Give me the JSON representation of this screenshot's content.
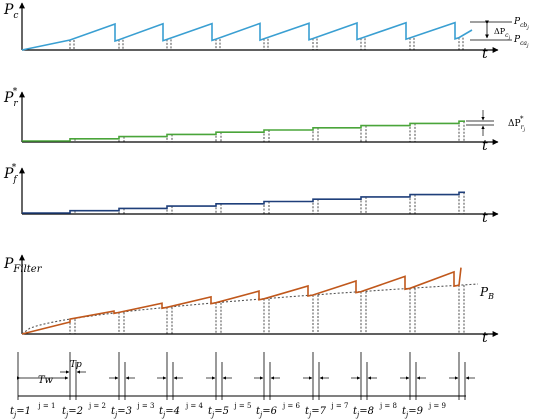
{
  "panels": [
    {
      "id": "pc",
      "y_label": "P",
      "y_label_sub": "c",
      "t_label": "t",
      "line_color": "#3a9fd2",
      "annotation": {
        "upper": "P",
        "upper_sub": "cb",
        "upper_subsub": "j",
        "lower": "P",
        "lower_sub": "ca",
        "lower_subsub": "j",
        "delta": "ΔP",
        "delta_sub": "c",
        "delta_subsub": "j"
      }
    },
    {
      "id": "pr",
      "y_label": "P",
      "y_label_sub": "r",
      "y_label_sup": "*",
      "t_label": "t",
      "line_color": "#4aa53a",
      "annotation": {
        "delta": "ΔP",
        "delta_sub": "r",
        "delta_subsub": "j",
        "delta_sup": "*"
      }
    },
    {
      "id": "pf",
      "y_label": "P",
      "y_label_sub": "f",
      "y_label_sup": "*",
      "t_label": "t",
      "line_color": "#1f3f7a"
    },
    {
      "id": "pfilter",
      "y_label": "P",
      "y_label_sub": "Filter",
      "t_label": "t",
      "line_color": "#c0581c",
      "baseline_label": "P",
      "baseline_sub": "B"
    }
  ],
  "timeline": {
    "tw_label": "Tw",
    "tp_label": "Tp",
    "t_labels": [
      "t_j=1",
      "t_j=2",
      "t_j=3",
      "t_j=4",
      "t_j=5",
      "t_j=6",
      "t_j=7",
      "t_j=8",
      "t_j=9"
    ],
    "t_base": "t",
    "t_sub": "j",
    "t_values": [
      "=1",
      "=2",
      "=3",
      "=4",
      "=5",
      "=6",
      "=7",
      "=8",
      "=9"
    ],
    "j_labels": [
      "j = 1",
      "j = 2",
      "j = 3",
      "j = 4",
      "j = 5",
      "j = 6",
      "j = 7",
      "j = 8",
      "j = 9"
    ]
  }
}
